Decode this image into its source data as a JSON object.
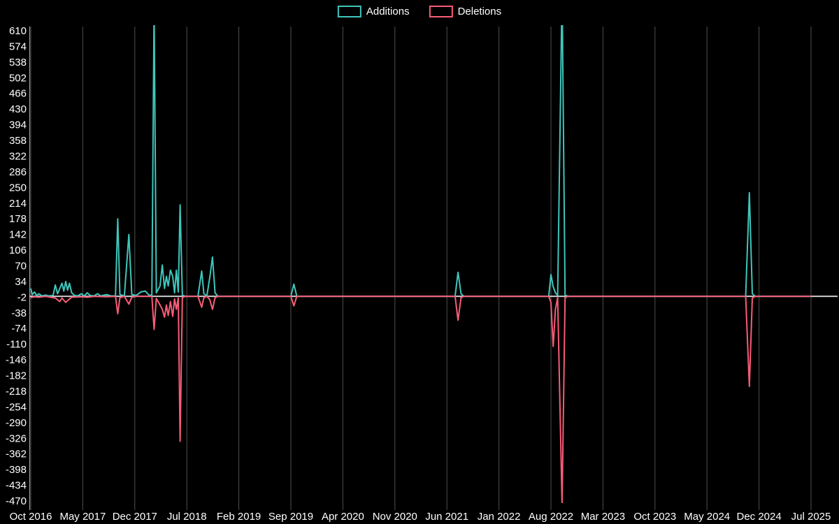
{
  "chart_data": {
    "type": "line",
    "title": "",
    "legend_position": "top-center",
    "grid": "vertical-only",
    "background_color": "#000000",
    "text_color": "#ffffff",
    "grid_color": "#4f4f4f",
    "zero_line_color": "#cccccc",
    "x_unit": "months since Oct 2016",
    "x_axis": {
      "labels": [
        "Oct 2016",
        "May 2017",
        "Dec 2017",
        "Jul 2018",
        "Feb 2019",
        "Sep 2019",
        "Apr 2020",
        "Nov 2020",
        "Jun 2021",
        "Jan 2022",
        "Aug 2022",
        "Mar 2023",
        "Oct 2023",
        "May 2024",
        "Dec 2024",
        "Jul 2025"
      ],
      "positions_months": [
        0,
        7,
        14,
        21,
        28,
        35,
        42,
        49,
        56,
        63,
        70,
        77,
        84,
        91,
        98,
        105
      ]
    },
    "y_axis": {
      "ticks": [
        610,
        574,
        538,
        502,
        466,
        430,
        394,
        358,
        322,
        286,
        250,
        214,
        178,
        142,
        106,
        70,
        34,
        -2,
        -38,
        -74,
        -110,
        -146,
        -182,
        -218,
        -254,
        -290,
        -326,
        -362,
        -398,
        -434,
        -470
      ],
      "min": -470,
      "max": 610,
      "tick_step": 36
    },
    "series": [
      {
        "name": "Additions",
        "color": "#3fc6bc",
        "points": [
          [
            0,
            18
          ],
          [
            0.2,
            4
          ],
          [
            0.5,
            10
          ],
          [
            0.8,
            2
          ],
          [
            1.1,
            6
          ],
          [
            1.5,
            1
          ],
          [
            2.0,
            3
          ],
          [
            2.4,
            1
          ],
          [
            3.0,
            2
          ],
          [
            3.3,
            26
          ],
          [
            3.6,
            6
          ],
          [
            3.9,
            18
          ],
          [
            4.2,
            30
          ],
          [
            4.45,
            12
          ],
          [
            4.7,
            34
          ],
          [
            4.95,
            14
          ],
          [
            5.2,
            30
          ],
          [
            5.5,
            8
          ],
          [
            5.9,
            2
          ],
          [
            6.3,
            1
          ],
          [
            6.8,
            6
          ],
          [
            7.2,
            1
          ],
          [
            7.6,
            8
          ],
          [
            8.0,
            2
          ],
          [
            8.5,
            1
          ],
          [
            9.0,
            6
          ],
          [
            9.4,
            1
          ],
          [
            10.2,
            4
          ],
          [
            10.8,
            1
          ],
          [
            11.4,
            1
          ],
          [
            11.7,
            178
          ],
          [
            12.0,
            4
          ],
          [
            12.6,
            1
          ],
          [
            13.2,
            142
          ],
          [
            13.6,
            4
          ],
          [
            14.2,
            2
          ],
          [
            14.8,
            10
          ],
          [
            15.4,
            12
          ],
          [
            15.9,
            3
          ],
          [
            16.3,
            2
          ],
          [
            16.6,
            665
          ],
          [
            16.9,
            8
          ],
          [
            17.4,
            24
          ],
          [
            17.7,
            72
          ],
          [
            18.0,
            18
          ],
          [
            18.25,
            46
          ],
          [
            18.5,
            24
          ],
          [
            18.8,
            60
          ],
          [
            19.1,
            46
          ],
          [
            19.35,
            8
          ],
          [
            19.6,
            60
          ],
          [
            19.85,
            10
          ],
          [
            20.1,
            210
          ],
          [
            20.4,
            3
          ],
          [
            20.8,
            0
          ],
          [
            22.5,
            0
          ],
          [
            23.0,
            58
          ],
          [
            23.3,
            6
          ],
          [
            23.7,
            1
          ],
          [
            24.1,
            44
          ],
          [
            24.45,
            90
          ],
          [
            24.8,
            8
          ],
          [
            25.2,
            0
          ],
          [
            35.0,
            0
          ],
          [
            35.4,
            28
          ],
          [
            35.8,
            0
          ],
          [
            57.1,
            0
          ],
          [
            57.5,
            55
          ],
          [
            57.9,
            6
          ],
          [
            58.3,
            0
          ],
          [
            69.7,
            0
          ],
          [
            70.0,
            50
          ],
          [
            70.3,
            22
          ],
          [
            70.6,
            8
          ],
          [
            70.9,
            2
          ],
          [
            71.5,
            705
          ],
          [
            71.9,
            3
          ],
          [
            72.3,
            0
          ],
          [
            96.2,
            0
          ],
          [
            96.7,
            238
          ],
          [
            97.1,
            6
          ],
          [
            97.5,
            0
          ],
          [
            105,
            0
          ]
        ]
      },
      {
        "name": "Deletions",
        "color": "#f75c77",
        "points": [
          [
            0,
            -3
          ],
          [
            0.5,
            -1
          ],
          [
            1.1,
            -2
          ],
          [
            2.0,
            0
          ],
          [
            3.3,
            -4
          ],
          [
            3.9,
            -12
          ],
          [
            4.2,
            -4
          ],
          [
            4.7,
            -14
          ],
          [
            5.2,
            -6
          ],
          [
            5.5,
            -2
          ],
          [
            6.8,
            -1
          ],
          [
            7.6,
            -2
          ],
          [
            8.5,
            0
          ],
          [
            10.2,
            -1
          ],
          [
            11.4,
            0
          ],
          [
            11.7,
            -40
          ],
          [
            12.0,
            -3
          ],
          [
            12.6,
            0
          ],
          [
            13.2,
            -18
          ],
          [
            13.6,
            -2
          ],
          [
            14.2,
            0
          ],
          [
            16.3,
            0
          ],
          [
            16.6,
            -76
          ],
          [
            16.9,
            -5
          ],
          [
            17.4,
            -20
          ],
          [
            17.7,
            -30
          ],
          [
            18.0,
            -48
          ],
          [
            18.25,
            -20
          ],
          [
            18.5,
            -44
          ],
          [
            18.8,
            -12
          ],
          [
            19.1,
            -46
          ],
          [
            19.35,
            -6
          ],
          [
            19.6,
            -30
          ],
          [
            19.85,
            -4
          ],
          [
            20.1,
            -333
          ],
          [
            20.4,
            -3
          ],
          [
            20.8,
            0
          ],
          [
            22.5,
            0
          ],
          [
            23.0,
            -25
          ],
          [
            23.3,
            -3
          ],
          [
            23.7,
            0
          ],
          [
            24.1,
            -8
          ],
          [
            24.45,
            -30
          ],
          [
            24.8,
            -3
          ],
          [
            25.2,
            0
          ],
          [
            35.0,
            0
          ],
          [
            35.4,
            -22
          ],
          [
            35.8,
            0
          ],
          [
            57.1,
            0
          ],
          [
            57.5,
            -55
          ],
          [
            57.9,
            -3
          ],
          [
            58.3,
            0
          ],
          [
            69.7,
            0
          ],
          [
            70.0,
            -14
          ],
          [
            70.3,
            -115
          ],
          [
            70.6,
            -30
          ],
          [
            70.9,
            -3
          ],
          [
            71.5,
            -478
          ],
          [
            71.9,
            -3
          ],
          [
            72.3,
            0
          ],
          [
            96.2,
            0
          ],
          [
            96.7,
            -207
          ],
          [
            97.1,
            -4
          ],
          [
            97.5,
            0
          ],
          [
            105,
            0
          ]
        ]
      }
    ]
  }
}
